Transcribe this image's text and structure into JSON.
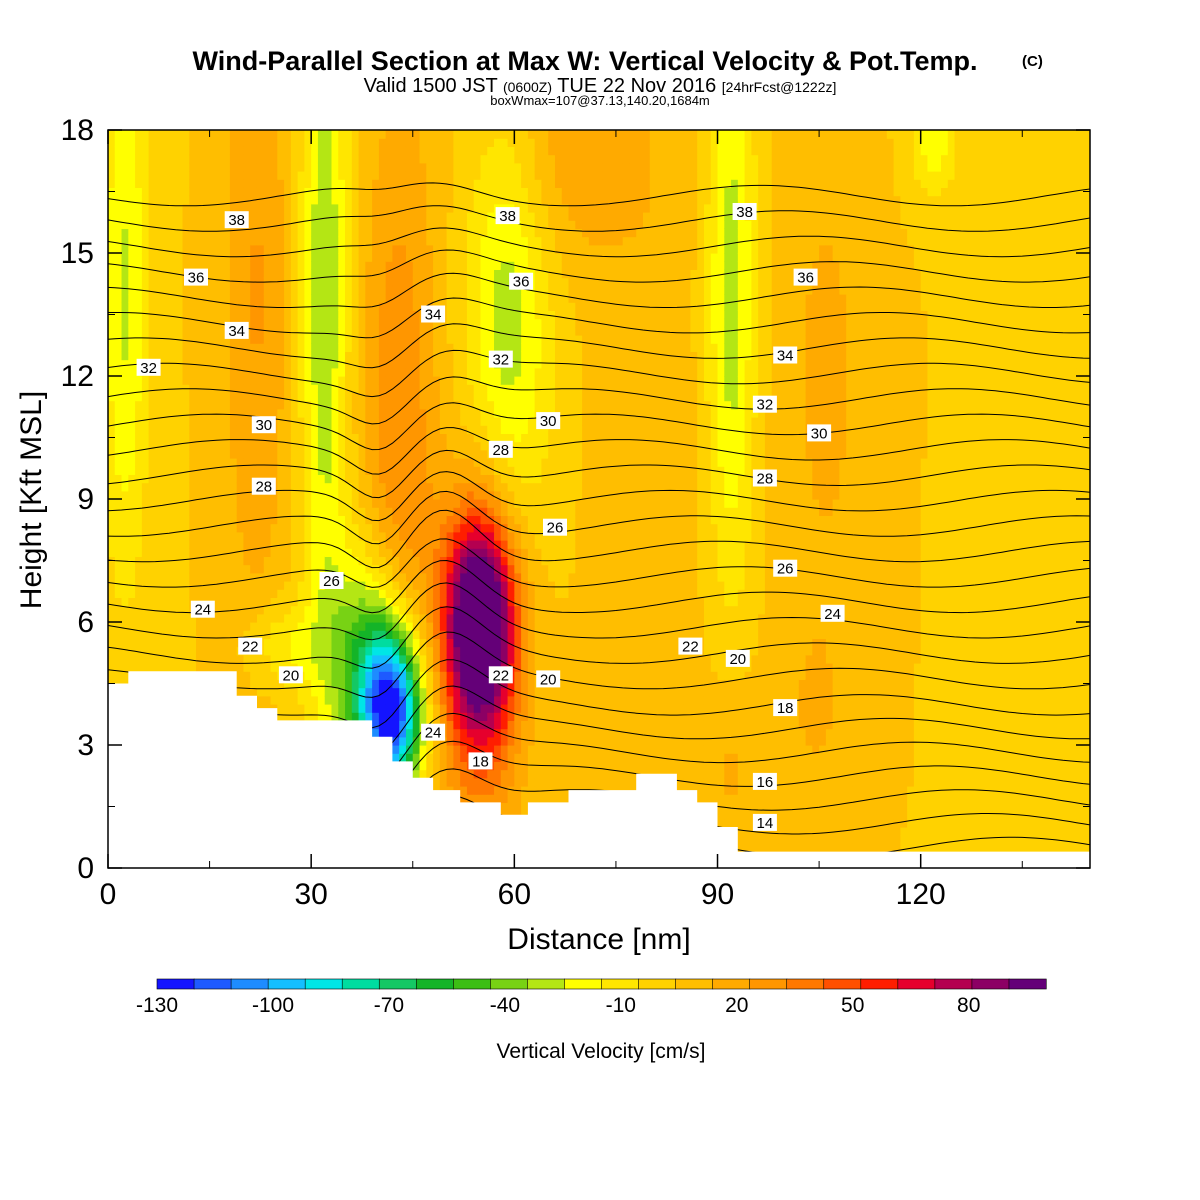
{
  "chart_data": {
    "type": "heatmap",
    "title": "Wind-Parallel Section at Max W: Vertical Velocity & Pot.Temp.",
    "title_mark": "(C)",
    "subtitle_valid": "Valid 1500 JST",
    "subtitle_utc": "(0600Z)",
    "subtitle_date": "TUE 22 Nov 2016",
    "subtitle_fcst": "[24hrFcst@1222z]",
    "subtitle_box": "boxWmax=107@37.13,140.20,1684m",
    "xlabel": "Distance [nm]",
    "ylabel": "Height [Kft MSL]",
    "xlim": [
      0,
      145
    ],
    "ylim": [
      0,
      18
    ],
    "x_ticks": [
      0,
      30,
      60,
      90,
      120
    ],
    "y_ticks": [
      0,
      3,
      6,
      9,
      12,
      15,
      18
    ],
    "colorbar": {
      "label": "Vertical Velocity [cm/s]",
      "tick_labels": [
        "-130",
        "-100",
        "-70",
        "-40",
        "-10",
        "20",
        "50",
        "80"
      ],
      "tick_values": [
        -130,
        -100,
        -70,
        -40,
        -10,
        20,
        50,
        80
      ],
      "range": [
        -130,
        100
      ],
      "colors": [
        "#1414ff",
        "#1e5aff",
        "#1e8cff",
        "#14bfff",
        "#00e6e6",
        "#00dca0",
        "#14c864",
        "#14b428",
        "#3cbe14",
        "#78d214",
        "#b4e614",
        "#ffff00",
        "#ffe600",
        "#ffd200",
        "#ffbe00",
        "#ffaa00",
        "#ff9600",
        "#ff7800",
        "#ff5000",
        "#ff1e00",
        "#e6002d",
        "#b40050",
        "#8c0064",
        "#640078"
      ]
    },
    "terrain_kft": [
      [
        0,
        4.5
      ],
      [
        3,
        4.5
      ],
      [
        3,
        4.8
      ],
      [
        16,
        4.8
      ],
      [
        19,
        4.8
      ],
      [
        19,
        4.2
      ],
      [
        22,
        4.2
      ],
      [
        22,
        3.9
      ],
      [
        25,
        3.9
      ],
      [
        25,
        3.6
      ],
      [
        39,
        3.6
      ],
      [
        39,
        3.2
      ],
      [
        42,
        3.2
      ],
      [
        42,
        2.6
      ],
      [
        45,
        2.6
      ],
      [
        45,
        2.2
      ],
      [
        48,
        2.2
      ],
      [
        48,
        1.9
      ],
      [
        52,
        1.9
      ],
      [
        52,
        1.6
      ],
      [
        58,
        1.6
      ],
      [
        58,
        1.3
      ],
      [
        62,
        1.3
      ],
      [
        62,
        1.6
      ],
      [
        68,
        1.6
      ],
      [
        68,
        1.9
      ],
      [
        78,
        1.9
      ],
      [
        78,
        2.3
      ],
      [
        84,
        2.3
      ],
      [
        84,
        1.9
      ],
      [
        87,
        1.9
      ],
      [
        87,
        1.6
      ],
      [
        90,
        1.6
      ],
      [
        90,
        1.0
      ],
      [
        93,
        1.0
      ],
      [
        93,
        0.4
      ],
      [
        145,
        0.4
      ]
    ],
    "w_features": [
      {
        "x": 55,
        "y": 6.0,
        "sx": 3.5,
        "sy": 1.8,
        "w": 100
      },
      {
        "x": 55,
        "y": 5.0,
        "sx": 4.5,
        "sy": 3.2,
        "w": 40
      },
      {
        "x": 42,
        "y": 3.8,
        "sx": 3.2,
        "sy": 1.4,
        "w": -130
      },
      {
        "x": 38,
        "y": 5.0,
        "sx": 4.0,
        "sy": 2.0,
        "w": -50
      },
      {
        "x": 43,
        "y": 10.5,
        "sx": 4.0,
        "sy": 5.5,
        "w": 28
      },
      {
        "x": 22,
        "y": 14.0,
        "sx": 3.5,
        "sy": 6.0,
        "w": 20
      },
      {
        "x": 2.5,
        "y": 14.0,
        "sx": 2.5,
        "sy": 5.0,
        "w": -30
      },
      {
        "x": 32,
        "y": 14.0,
        "sx": 2.5,
        "sy": 6.0,
        "w": -38
      },
      {
        "x": 59,
        "y": 13.5,
        "sx": 4.5,
        "sy": 4.0,
        "w": -35
      },
      {
        "x": 92,
        "y": 14.0,
        "sx": 2.5,
        "sy": 5.0,
        "w": -35
      },
      {
        "x": 68,
        "y": 17.5,
        "sx": 9.0,
        "sy": 2.0,
        "w": 18
      },
      {
        "x": 106,
        "y": 12.0,
        "sx": 5.0,
        "sy": 5.0,
        "w": 12
      },
      {
        "x": 80,
        "y": 10.0,
        "sx": 6.0,
        "sy": 6.0,
        "w": 6
      },
      {
        "x": 26,
        "y": 5.4,
        "sx": 4.0,
        "sy": 0.8,
        "w": -20
      },
      {
        "x": 122,
        "y": 17.8,
        "sx": 2.5,
        "sy": 1.0,
        "w": -25
      },
      {
        "x": 92,
        "y": 2.5,
        "sx": 3.0,
        "sy": 1.5,
        "w": 12
      },
      {
        "x": 104,
        "y": 3.5,
        "sx": 5.0,
        "sy": 2.0,
        "w": 8
      }
    ],
    "theta_contour_levels": [
      14,
      15,
      16,
      17,
      18,
      19,
      20,
      21,
      22,
      23,
      24,
      25,
      26,
      27,
      28,
      29,
      30,
      31,
      32,
      33,
      34,
      35,
      36,
      37,
      38,
      39,
      40
    ],
    "contour_labels": [
      {
        "text": "38",
        "x": 19,
        "y": 15.8
      },
      {
        "text": "36",
        "x": 13,
        "y": 14.4
      },
      {
        "text": "34",
        "x": 19,
        "y": 13.1
      },
      {
        "text": "32",
        "x": 6,
        "y": 12.2
      },
      {
        "text": "30",
        "x": 23,
        "y": 10.8
      },
      {
        "text": "28",
        "x": 23,
        "y": 9.3
      },
      {
        "text": "26",
        "x": 33,
        "y": 7.0
      },
      {
        "text": "24",
        "x": 14,
        "y": 6.3
      },
      {
        "text": "22",
        "x": 21,
        "y": 5.4
      },
      {
        "text": "20",
        "x": 27,
        "y": 4.7
      },
      {
        "text": "38",
        "x": 59,
        "y": 15.9
      },
      {
        "text": "36",
        "x": 61,
        "y": 14.3
      },
      {
        "text": "34",
        "x": 48,
        "y": 13.5
      },
      {
        "text": "32",
        "x": 58,
        "y": 12.4
      },
      {
        "text": "30",
        "x": 65,
        "y": 10.9
      },
      {
        "text": "28",
        "x": 58,
        "y": 10.2
      },
      {
        "text": "26",
        "x": 66,
        "y": 8.3
      },
      {
        "text": "24",
        "x": 48,
        "y": 3.3
      },
      {
        "text": "22",
        "x": 58,
        "y": 4.7
      },
      {
        "text": "20",
        "x": 65,
        "y": 4.6
      },
      {
        "text": "18",
        "x": 55,
        "y": 2.6
      },
      {
        "text": "38",
        "x": 94,
        "y": 16.0
      },
      {
        "text": "36",
        "x": 103,
        "y": 14.4
      },
      {
        "text": "34",
        "x": 100,
        "y": 12.5
      },
      {
        "text": "32",
        "x": 97,
        "y": 11.3
      },
      {
        "text": "30",
        "x": 105,
        "y": 10.6
      },
      {
        "text": "28",
        "x": 97,
        "y": 9.5
      },
      {
        "text": "26",
        "x": 100,
        "y": 7.3
      },
      {
        "text": "24",
        "x": 107,
        "y": 6.2
      },
      {
        "text": "22",
        "x": 86,
        "y": 5.4
      },
      {
        "text": "20",
        "x": 93,
        "y": 5.1
      },
      {
        "text": "18",
        "x": 100,
        "y": 3.9
      },
      {
        "text": "16",
        "x": 97,
        "y": 2.1
      },
      {
        "text": "14",
        "x": 97,
        "y": 1.1
      }
    ]
  }
}
